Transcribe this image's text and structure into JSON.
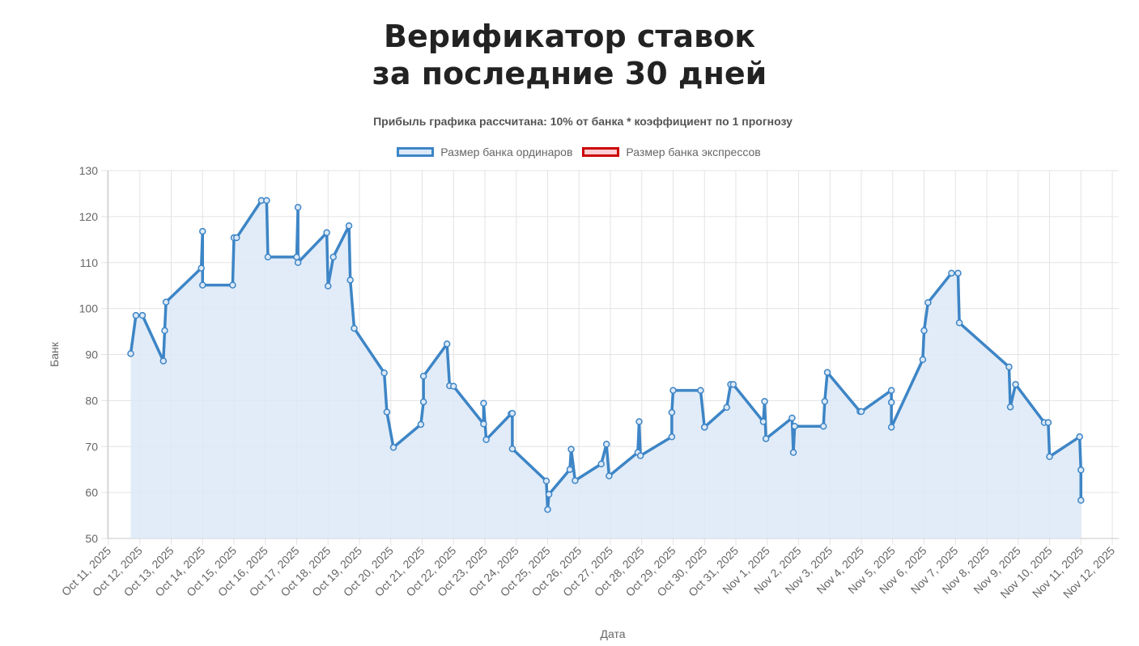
{
  "title": {
    "line1": "Верификатор ставок",
    "line2": "за последние 30 дней"
  },
  "subtitle": "Прибыль графика рассчитана: 10% от банка * коэффициент по 1 прогнозу",
  "legend": [
    {
      "label": "Размер банка ординаров",
      "stroke": "#3d85c6",
      "fill": "#dce9f7"
    },
    {
      "label": "Размер банка экспрессов",
      "stroke": "#cc0000",
      "fill": "#f8cfd3"
    }
  ],
  "chart_data": {
    "type": "line",
    "ylabel": "Банк",
    "xlabel": "Дата",
    "ylim": [
      50,
      130
    ],
    "yticks": [
      50,
      60,
      70,
      80,
      90,
      100,
      110,
      120,
      130
    ],
    "xlim": [
      "Oct 11, 2025",
      "Oct 12, 2025",
      "Oct 13, 2025",
      "Oct 14, 2025",
      "Oct 15, 2025",
      "Oct 16, 2025",
      "Oct 17, 2025",
      "Oct 18, 2025",
      "Oct 19, 2025",
      "Oct 20, 2025",
      "Oct 21, 2025",
      "Oct 22, 2025",
      "Oct 23, 2025",
      "Oct 24, 2025",
      "Oct 25, 2025",
      "Oct 26, 2025",
      "Oct 27, 2025",
      "Oct 28, 2025",
      "Oct 29, 2025",
      "Oct 30, 2025",
      "Oct 31, 2025",
      "Nov 1, 2025",
      "Nov 2, 2025",
      "Nov 3, 2025",
      "Nov 4, 2025",
      "Nov 5, 2025",
      "Nov 6, 2025",
      "Nov 7, 2025",
      "Nov 8, 2025",
      "Nov 9, 2025",
      "Nov 10, 2025",
      "Nov 11, 2025",
      "Nov 12, 2025"
    ],
    "grid": true,
    "legend_position": "top",
    "series": [
      {
        "name": "Размер банка ординаров",
        "color": "#3d85c6",
        "fill": "#dce9f7",
        "points": [
          [
            "Oct 11, 2025 17:00",
            90.2
          ],
          [
            "Oct 11, 2025 21:00",
            98.5
          ],
          [
            "Oct 12, 2025 02:00",
            98.5
          ],
          [
            "Oct 12, 2025 18:00",
            88.6
          ],
          [
            "Oct 12, 2025 19:00",
            95.2
          ],
          [
            "Oct 12, 2025 20:00",
            101.4
          ],
          [
            "Oct 13, 2025 23:00",
            108.8
          ],
          [
            "Oct 14, 2025 00:00",
            116.8
          ],
          [
            "Oct 14, 2025 00:00",
            105.1
          ],
          [
            "Oct 14, 2025 23:00",
            105.1
          ],
          [
            "Oct 15, 2025 00:00",
            115.4
          ],
          [
            "Oct 15, 2025 02:00",
            115.4
          ],
          [
            "Oct 15, 2025 21:00",
            123.5
          ],
          [
            "Oct 16, 2025 01:00",
            123.5
          ],
          [
            "Oct 16, 2025 02:00",
            111.2
          ],
          [
            "Oct 17, 2025 00:00",
            111.2
          ],
          [
            "Oct 17, 2025 01:00",
            122.0
          ],
          [
            "Oct 17, 2025 01:00",
            110.0
          ],
          [
            "Oct 17, 2025 23:00",
            116.5
          ],
          [
            "Oct 18, 2025 00:00",
            104.9
          ],
          [
            "Oct 18, 2025 04:00",
            111.2
          ],
          [
            "Oct 18, 2025 16:00",
            118.0
          ],
          [
            "Oct 18, 2025 17:00",
            106.2
          ],
          [
            "Oct 18, 2025 20:00",
            95.7
          ],
          [
            "Oct 19, 2025 19:00",
            86.0
          ],
          [
            "Oct 19, 2025 21:00",
            77.5
          ],
          [
            "Oct 20, 2025 02:00",
            69.8
          ],
          [
            "Oct 20, 2025 23:00",
            74.8
          ],
          [
            "Oct 21, 2025 01:00",
            79.7
          ],
          [
            "Oct 21, 2025 01:00",
            85.3
          ],
          [
            "Oct 21, 2025 19:00",
            92.3
          ],
          [
            "Oct 21, 2025 21:00",
            83.2
          ],
          [
            "Oct 22, 2025 00:00",
            83.1
          ],
          [
            "Oct 22, 2025 23:00",
            74.9
          ],
          [
            "Oct 22, 2025 23:00",
            79.4
          ],
          [
            "Oct 23, 2025 01:00",
            71.5
          ],
          [
            "Oct 23, 2025 20:00",
            77.1
          ],
          [
            "Oct 23, 2025 21:00",
            77.2
          ],
          [
            "Oct 23, 2025 21:00",
            69.5
          ],
          [
            "Oct 24, 2025 23:00",
            62.5
          ],
          [
            "Oct 25, 2025 00:00",
            56.3
          ],
          [
            "Oct 25, 2025 01:00",
            59.6
          ],
          [
            "Oct 25, 2025 17:00",
            65.0
          ],
          [
            "Oct 25, 2025 18:00",
            69.4
          ],
          [
            "Oct 25, 2025 21:00",
            62.6
          ],
          [
            "Oct 26, 2025 17:00",
            66.2
          ],
          [
            "Oct 26, 2025 21:00",
            70.5
          ],
          [
            "Oct 26, 2025 23:00",
            63.6
          ],
          [
            "Oct 27, 2025 21:00",
            68.7
          ],
          [
            "Oct 27, 2025 22:00",
            75.4
          ],
          [
            "Oct 27, 2025 23:00",
            68.0
          ],
          [
            "Oct 28, 2025 23:00",
            72.1
          ],
          [
            "Oct 28, 2025 23:00",
            77.4
          ],
          [
            "Oct 29, 2025 00:00",
            82.2
          ],
          [
            "Oct 29, 2025 21:00",
            82.2
          ],
          [
            "Oct 30, 2025 00:00",
            74.2
          ],
          [
            "Oct 30, 2025 00:00",
            74.2
          ],
          [
            "Oct 30, 2025 17:00",
            78.5
          ],
          [
            "Oct 30, 2025 20:00",
            83.5
          ],
          [
            "Oct 30, 2025 22:00",
            83.5
          ],
          [
            "Oct 31, 2025 21:00",
            75.4
          ],
          [
            "Oct 31, 2025 22:00",
            79.8
          ],
          [
            "Oct 31, 2025 23:00",
            71.7
          ],
          [
            "Nov 1, 2025 19:00",
            76.2
          ],
          [
            "Nov 1, 2025 20:00",
            68.7
          ],
          [
            "Nov 1, 2025 21:00",
            74.4
          ],
          [
            "Nov 2, 2025 19:00",
            74.4
          ],
          [
            "Nov 2, 2025 20:00",
            79.8
          ],
          [
            "Nov 2, 2025 22:00",
            86.1
          ],
          [
            "Nov 3, 2025 23:00",
            77.6
          ],
          [
            "Nov 4, 2025 00:00",
            77.6
          ],
          [
            "Nov 4, 2025 23:00",
            82.2
          ],
          [
            "Nov 4, 2025 23:00",
            79.6
          ],
          [
            "Nov 4, 2025 23:00",
            74.2
          ],
          [
            "Nov 5, 2025 23:00",
            88.9
          ],
          [
            "Nov 6, 2025 00:00",
            95.2
          ],
          [
            "Nov 6, 2025 03:00",
            101.3
          ],
          [
            "Nov 6, 2025 21:00",
            107.7
          ],
          [
            "Nov 7, 2025 02:00",
            107.7
          ],
          [
            "Nov 7, 2025 03:00",
            96.9
          ],
          [
            "Nov 8, 2025 17:00",
            87.3
          ],
          [
            "Nov 8, 2025 18:00",
            78.6
          ],
          [
            "Nov 8, 2025 22:00",
            83.5
          ],
          [
            "Nov 9, 2025 20:00",
            75.2
          ],
          [
            "Nov 9, 2025 23:00",
            75.2
          ],
          [
            "Nov 10, 2025 00:00",
            67.8
          ],
          [
            "Nov 10, 2025 23:00",
            72.1
          ],
          [
            "Nov 11, 2025 00:00",
            64.9
          ],
          [
            "Nov 11, 2025 00:00",
            58.3
          ]
        ]
      },
      {
        "name": "Размер банка экспрессов",
        "color": "#cc0000",
        "fill": "#f8cfd3",
        "points": []
      }
    ]
  }
}
